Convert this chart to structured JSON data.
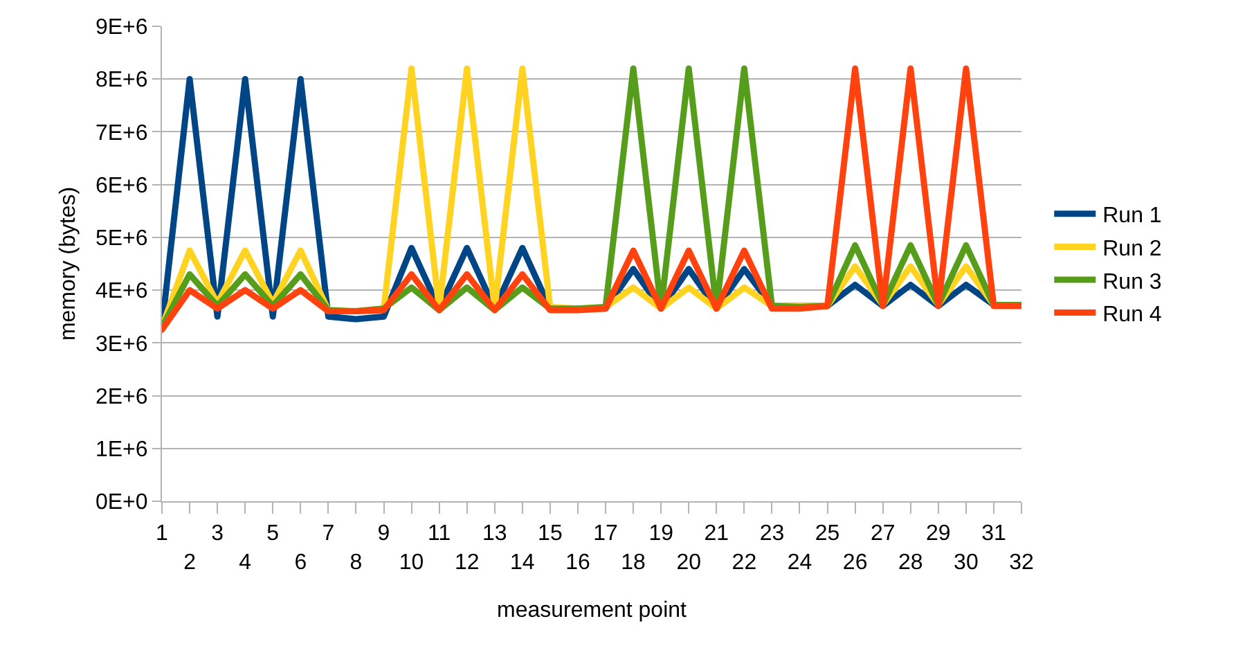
{
  "chart_data": {
    "type": "line",
    "xlabel": "measurement point",
    "ylabel": "memory (bytes)",
    "categories": [
      "1",
      "2",
      "3",
      "4",
      "5",
      "6",
      "7",
      "8",
      "9",
      "10",
      "11",
      "12",
      "13",
      "14",
      "15",
      "16",
      "17",
      "18",
      "19",
      "20",
      "21",
      "22",
      "23",
      "24",
      "25",
      "26",
      "27",
      "28",
      "29",
      "30",
      "31",
      "32"
    ],
    "series": [
      {
        "name": "Run 1",
        "color": "#004586",
        "values": [
          3300000,
          8000000,
          3500000,
          8000000,
          3500000,
          8000000,
          3500000,
          3450000,
          3500000,
          4800000,
          3650000,
          4800000,
          3650000,
          4800000,
          3650000,
          3650000,
          3650000,
          4400000,
          3650000,
          4400000,
          3650000,
          4400000,
          3700000,
          3700000,
          3700000,
          4100000,
          3700000,
          4100000,
          3700000,
          4100000,
          3720000,
          3720000
        ]
      },
      {
        "name": "Run 2",
        "color": "#ffd320",
        "values": [
          3300000,
          4750000,
          3750000,
          4750000,
          3750000,
          4750000,
          3620000,
          3600000,
          3650000,
          8200000,
          3650000,
          8200000,
          3650000,
          8200000,
          3680000,
          3650000,
          3680000,
          4050000,
          3650000,
          4050000,
          3650000,
          4050000,
          3700000,
          3700000,
          3700000,
          4450000,
          3720000,
          4450000,
          3720000,
          4450000,
          3720000,
          3720000
        ]
      },
      {
        "name": "Run 3",
        "color": "#579d1c",
        "values": [
          3300000,
          4300000,
          3700000,
          4300000,
          3700000,
          4300000,
          3620000,
          3600000,
          3650000,
          4050000,
          3620000,
          4050000,
          3620000,
          4050000,
          3650000,
          3650000,
          3680000,
          8200000,
          3650000,
          8200000,
          3650000,
          8200000,
          3700000,
          3680000,
          3700000,
          4850000,
          3720000,
          4850000,
          3720000,
          4850000,
          3720000,
          3720000
        ]
      },
      {
        "name": "Run 4",
        "color": "#ff420e",
        "values": [
          3250000,
          4000000,
          3650000,
          4000000,
          3650000,
          4000000,
          3600000,
          3600000,
          3620000,
          4300000,
          3620000,
          4300000,
          3620000,
          4300000,
          3620000,
          3620000,
          3650000,
          4750000,
          3650000,
          4750000,
          3650000,
          4750000,
          3650000,
          3650000,
          3700000,
          8200000,
          3700000,
          8200000,
          3700000,
          8200000,
          3700000,
          3700000
        ]
      }
    ],
    "ylim": [
      0,
      9000000
    ],
    "yticks": [
      {
        "value": 0,
        "label": "0E+0"
      },
      {
        "value": 1000000,
        "label": "1E+6"
      },
      {
        "value": 2000000,
        "label": "2E+6"
      },
      {
        "value": 3000000,
        "label": "3E+6"
      },
      {
        "value": 4000000,
        "label": "4E+6"
      },
      {
        "value": 5000000,
        "label": "5E+6"
      },
      {
        "value": 6000000,
        "label": "6E+6"
      },
      {
        "value": 7000000,
        "label": "7E+6"
      },
      {
        "value": 8000000,
        "label": "8E+6"
      },
      {
        "value": 9000000,
        "label": "9E+6"
      }
    ],
    "grid": "y",
    "legend": "right",
    "marker": "none",
    "line_style": "solid"
  }
}
